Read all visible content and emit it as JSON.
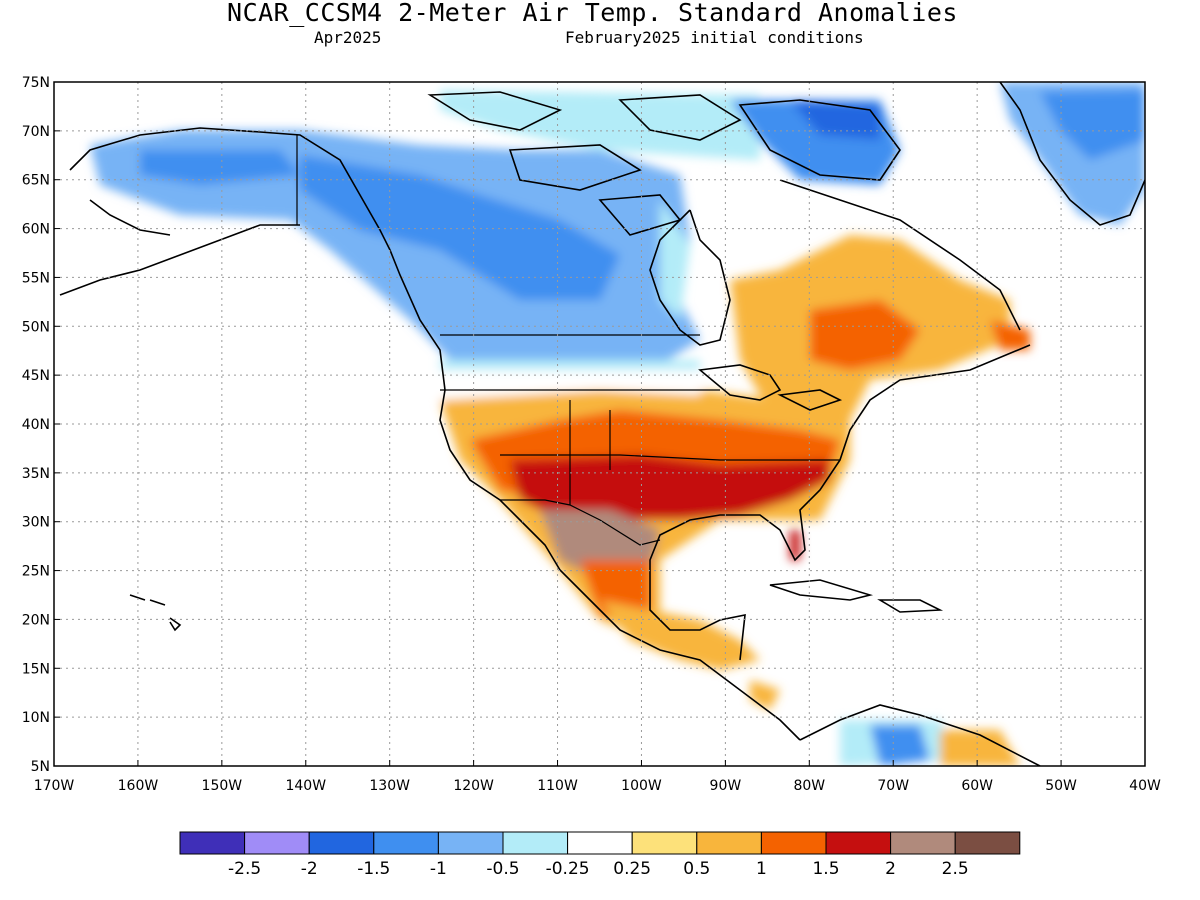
{
  "header": {
    "title": "NCAR_CCSM4 2-Meter Air Temp. Standard Anomalies",
    "valid_month": "Apr2025",
    "init_conditions": "February2025 initial conditions"
  },
  "map": {
    "lon_range": [
      -170,
      -40
    ],
    "lat_range": [
      5,
      75
    ],
    "lat_ticks": [
      "75N",
      "70N",
      "65N",
      "60N",
      "55N",
      "50N",
      "45N",
      "40N",
      "35N",
      "30N",
      "25N",
      "20N",
      "15N",
      "10N",
      "5N"
    ],
    "lon_ticks": [
      "170W",
      "160W",
      "150W",
      "140W",
      "130W",
      "120W",
      "110W",
      "100W",
      "90W",
      "80W",
      "70W",
      "60W",
      "50W",
      "40W"
    ],
    "gridlines": true
  },
  "colorbar": {
    "labels": [
      "-2.5",
      "-2",
      "-1.5",
      "-1",
      "-0.5",
      "-0.25",
      "0.25",
      "0.5",
      "1",
      "1.5",
      "2",
      "2.5"
    ],
    "colors": [
      "#3f2fb8",
      "#a08cf7",
      "#2166e0",
      "#3f8ff0",
      "#77b3f5",
      "#b3ecf8",
      "#ffffff",
      "#fde17a",
      "#f8b53c",
      "#f46200",
      "#c50f0f",
      "#b08a7c",
      "#7b4e42"
    ]
  }
}
